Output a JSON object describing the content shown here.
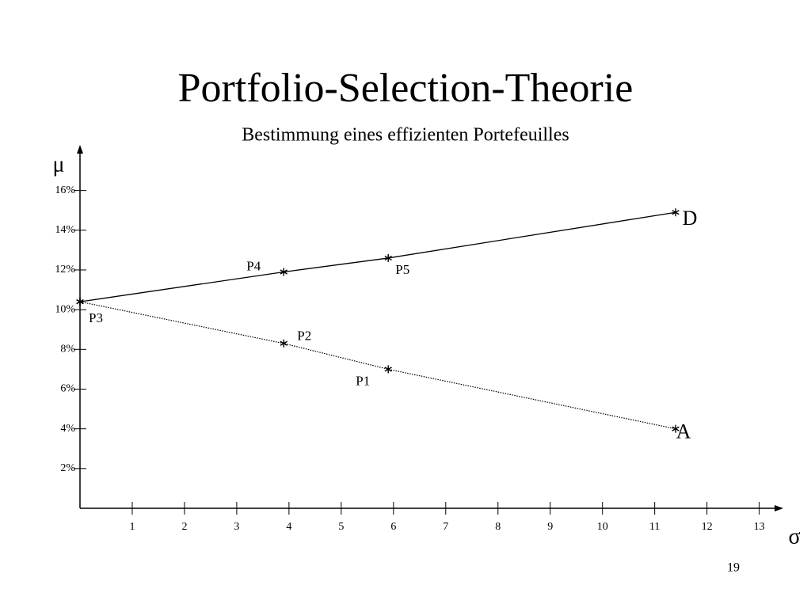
{
  "chart_data": {
    "type": "line",
    "title": "Portfolio-Selection-Theorie",
    "subtitle": "Bestimmung eines effizienten Portefeuilles",
    "x_label": "σ",
    "y_label": "μ",
    "page_number": "19",
    "xlim": [
      0,
      13.4
    ],
    "ylim": [
      0,
      17.5
    ],
    "xticks": [
      1,
      2,
      3,
      4,
      5,
      6,
      7,
      8,
      9,
      10,
      11,
      12,
      13
    ],
    "yticks": [
      {
        "value": 2,
        "label": "2%"
      },
      {
        "value": 4,
        "label": "4%"
      },
      {
        "value": 6,
        "label": "6%"
      },
      {
        "value": 8,
        "label": "8%"
      },
      {
        "value": 10,
        "label": "10%"
      },
      {
        "value": 12,
        "label": "12%"
      },
      {
        "value": 14,
        "label": "14%"
      },
      {
        "value": 16,
        "label": "16%"
      }
    ],
    "series": [
      {
        "color": "#000000",
        "line_style": "solid",
        "x": [
          0,
          3.9,
          5.9,
          11.4
        ],
        "values": [
          10.4,
          11.9,
          12.6,
          14.9
        ],
        "labels": [
          "P3",
          "P4",
          "P5",
          "D"
        ]
      },
      {
        "color": "#000000",
        "line_style": "dotted",
        "x": [
          0,
          3.9,
          5.9,
          11.4
        ],
        "values": [
          10.4,
          8.3,
          7.0,
          4.0
        ],
        "labels": [
          null,
          "P2",
          "P1",
          "A"
        ]
      }
    ]
  }
}
